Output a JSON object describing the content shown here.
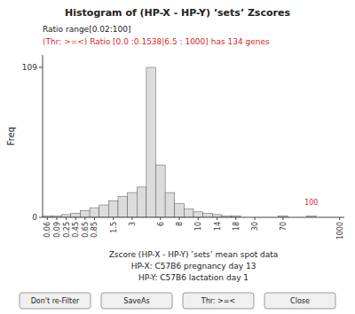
{
  "chart_data": {
    "type": "bar",
    "title": "Histogram of (HP-X - HP-Y) ’sets’ Zscores",
    "xlabel": [
      "Zscore (HP-X - HP-Y) ’sets’ mean spot data",
      "HP-X: C57B6 pregnancy day 13",
      "HP-Y: C57B6 lactation day 1"
    ],
    "ylabel": "Freq",
    "annotations": [
      "Ratio range[0.02:100]",
      "(Thr: >=<) Ratio [0.0 :0.1538|6.5 : 1000] has 134 genes",
      "100",
      "Don't re-Filter",
      "SaveAs",
      "Thr: >=<",
      "Close"
    ],
    "categories": [
      "0.06",
      "0.09",
      "0.25",
      "0.45",
      "0.65",
      "0.85",
      null,
      "1.5",
      null,
      "3",
      null,
      null,
      "6",
      null,
      "8",
      null,
      "10",
      null,
      "14",
      null,
      "18",
      null,
      "30",
      null,
      null,
      "70",
      null,
      null,
      null,
      null,
      null,
      "1000"
    ],
    "values": [
      1,
      1,
      2,
      3,
      5,
      7,
      9,
      12,
      15,
      18,
      22,
      109,
      38,
      18,
      10,
      6,
      4,
      3,
      2,
      1,
      1,
      0,
      0,
      0,
      0,
      1,
      0,
      0,
      1,
      0,
      0,
      0
    ],
    "color": "#dcdcdc",
    "ylim": [
      0,
      118
    ],
    "yticks": [
      0,
      109
    ],
    "grid": false
  }
}
